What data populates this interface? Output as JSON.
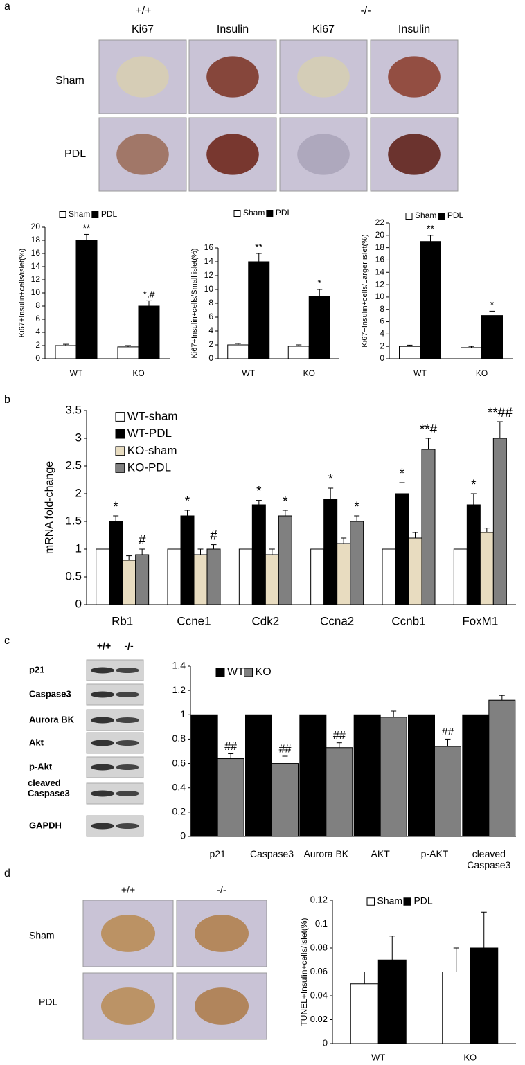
{
  "panel_labels": [
    "a",
    "b",
    "c",
    "d"
  ],
  "panel_a": {
    "genotypes": [
      "+/+",
      "-/-"
    ],
    "stains": [
      "Ki67",
      "Insulin",
      "Ki67",
      "Insulin"
    ],
    "conditions": [
      "Sham",
      "PDL"
    ]
  },
  "panel_c": {
    "genotypes": [
      "+/+",
      "-/-"
    ],
    "blot_labels": [
      "p21",
      "Caspase3",
      "Aurora BK",
      "Akt",
      "p-Akt",
      "cleaved Caspase3",
      "GAPDH"
    ]
  },
  "panel_d": {
    "genotypes": [
      "+/+",
      "-/-"
    ],
    "conditions": [
      "Sham",
      "PDL"
    ]
  },
  "chart_data": [
    {
      "type": "bar",
      "y_label": "Ki67+Insulin+cells/islet(%)",
      "categories": [
        "WT",
        "KO"
      ],
      "series": [
        {
          "name": "Sham",
          "color": "#ffffff",
          "values": [
            2,
            1.8
          ],
          "errors": [
            0.2,
            0.2
          ]
        },
        {
          "name": "PDL",
          "color": "#000000",
          "values": [
            18,
            8
          ],
          "errors": [
            0.9,
            0.8
          ],
          "annotations": [
            "**",
            "*,#"
          ]
        }
      ],
      "ylim": [
        0,
        20
      ],
      "yticks": [
        0,
        2,
        4,
        6,
        8,
        10,
        12,
        14,
        16,
        18,
        20
      ],
      "grid": false,
      "legend": "upper left"
    },
    {
      "type": "bar",
      "y_label": "Ki67+Insulin+cells/Small islet(%)",
      "categories": [
        "WT",
        "KO"
      ],
      "series": [
        {
          "name": "Sham",
          "color": "#ffffff",
          "values": [
            2,
            1.8
          ],
          "errors": [
            0.2,
            0.2
          ]
        },
        {
          "name": "PDL",
          "color": "#000000",
          "values": [
            14,
            9
          ],
          "errors": [
            1.2,
            1
          ],
          "annotations": [
            "**",
            "*"
          ]
        }
      ],
      "ylim": [
        0,
        16
      ],
      "yticks": [
        0,
        2,
        4,
        6,
        8,
        10,
        12,
        14,
        16
      ],
      "grid": false,
      "legend": "upper left"
    },
    {
      "type": "bar",
      "y_label": "Ki67+Insulin+cells/Larger islet(%)",
      "categories": [
        "WT",
        "KO"
      ],
      "series": [
        {
          "name": "Sham",
          "color": "#ffffff",
          "values": [
            2,
            1.8
          ],
          "errors": [
            0.2,
            0.2
          ]
        },
        {
          "name": "PDL",
          "color": "#000000",
          "values": [
            19,
            7
          ],
          "errors": [
            1,
            0.7
          ],
          "annotations": [
            "**",
            "*"
          ]
        }
      ],
      "ylim": [
        0,
        22
      ],
      "yticks": [
        0,
        2,
        4,
        6,
        8,
        10,
        12,
        14,
        16,
        18,
        20,
        22
      ],
      "grid": false,
      "legend": "upper left"
    },
    {
      "type": "bar",
      "y_label": "mRNA fold-change",
      "categories": [
        "Rb1",
        "Ccne1",
        "Cdk2",
        "Ccna2",
        "Ccnb1",
        "FoxM1"
      ],
      "series": [
        {
          "name": "WT-sham",
          "color": "#ffffff",
          "values": [
            1,
            1,
            1,
            1,
            1,
            1
          ]
        },
        {
          "name": "WT-PDL",
          "color": "#000000",
          "values": [
            1.5,
            1.6,
            1.8,
            1.9,
            2.0,
            1.8
          ],
          "errors": [
            0.1,
            0.1,
            0.08,
            0.2,
            0.2,
            0.2
          ],
          "annotations": [
            "*",
            "*",
            "*",
            "*",
            "*",
            "*"
          ]
        },
        {
          "name": "KO-sham",
          "color": "#e8dcc0",
          "values": [
            0.8,
            0.9,
            0.9,
            1.1,
            1.2,
            1.3
          ],
          "errors": [
            0.08,
            0.1,
            0.1,
            0.1,
            0.1,
            0.08
          ]
        },
        {
          "name": "KO-PDL",
          "color": "#808080",
          "values": [
            0.9,
            1.0,
            1.6,
            1.5,
            2.8,
            3.0
          ],
          "errors": [
            0.1,
            0.08,
            0.1,
            0.1,
            0.2,
            0.3
          ],
          "annotations": [
            "#",
            "#",
            "*",
            "*",
            "**#",
            "**##"
          ]
        }
      ],
      "ylim": [
        0,
        3.5
      ],
      "yticks": [
        0,
        0.5,
        1,
        1.5,
        2,
        2.5,
        3,
        3.5
      ],
      "grid": false,
      "legend": "upper left"
    },
    {
      "type": "bar",
      "categories": [
        "p21",
        "Caspase3",
        "Aurora BK",
        "AKT",
        "p-AKT",
        "cleaved Caspase3"
      ],
      "series": [
        {
          "name": "WT",
          "color": "#000000",
          "values": [
            1,
            1,
            1,
            1,
            1,
            1
          ]
        },
        {
          "name": "KO",
          "color": "#808080",
          "values": [
            0.64,
            0.6,
            0.73,
            0.98,
            0.74,
            1.12
          ],
          "errors": [
            0.04,
            0.06,
            0.04,
            0.05,
            0.06,
            0.04
          ],
          "annotations": [
            "##",
            "##",
            "##",
            null,
            "##",
            null
          ]
        }
      ],
      "ylim": [
        0,
        1.4
      ],
      "yticks": [
        0,
        0.2,
        0.4,
        0.6,
        0.8,
        1,
        1.2,
        1.4
      ],
      "grid": false,
      "legend": "upper left"
    },
    {
      "type": "bar",
      "y_label": "TUNEL+Insulin+cells/Islet(%)",
      "categories": [
        "WT",
        "KO"
      ],
      "series": [
        {
          "name": "Sham",
          "color": "#ffffff",
          "values": [
            0.05,
            0.06
          ],
          "errors": [
            0.01,
            0.02
          ]
        },
        {
          "name": "PDL",
          "color": "#000000",
          "values": [
            0.07,
            0.08
          ],
          "errors": [
            0.02,
            0.03
          ]
        }
      ],
      "ylim": [
        0,
        0.12
      ],
      "yticks": [
        0,
        0.02,
        0.04,
        0.06,
        0.08,
        0.1,
        0.12
      ],
      "grid": false,
      "legend": "upper center"
    }
  ]
}
